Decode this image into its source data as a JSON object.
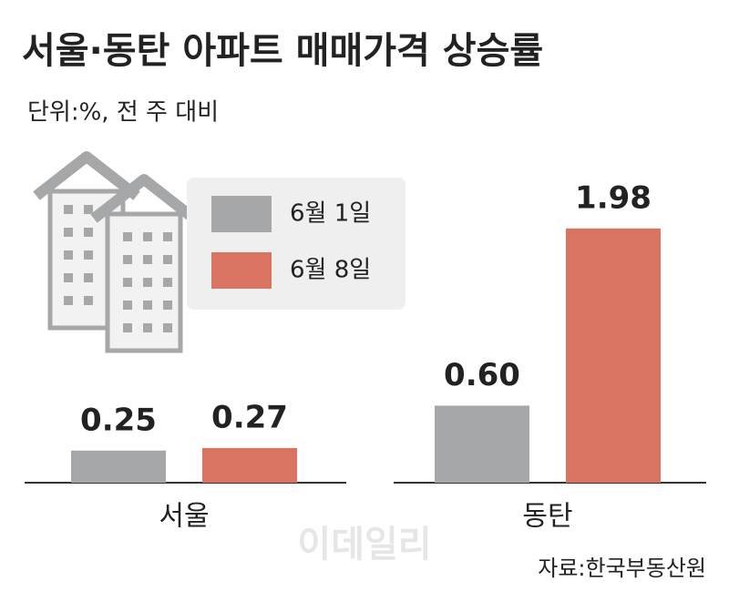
{
  "chart_data": {
    "type": "bar",
    "title": "서울·동탄 아파트 매매가격 상승률",
    "subtitle": "단위:%, 전 주 대비",
    "categories": [
      "서울",
      "동탄"
    ],
    "series": [
      {
        "name": "6월 1일",
        "color": "#a6a7a9",
        "values": [
          0.25,
          0.6
        ],
        "value_labels": [
          "0.25",
          "0.60"
        ]
      },
      {
        "name": "6월 8일",
        "color": "#d97462",
        "values": [
          0.27,
          1.98
        ],
        "value_labels": [
          "0.27",
          "1.98"
        ]
      }
    ],
    "source": "자료:한국부동산원",
    "watermark": "이데일리"
  }
}
